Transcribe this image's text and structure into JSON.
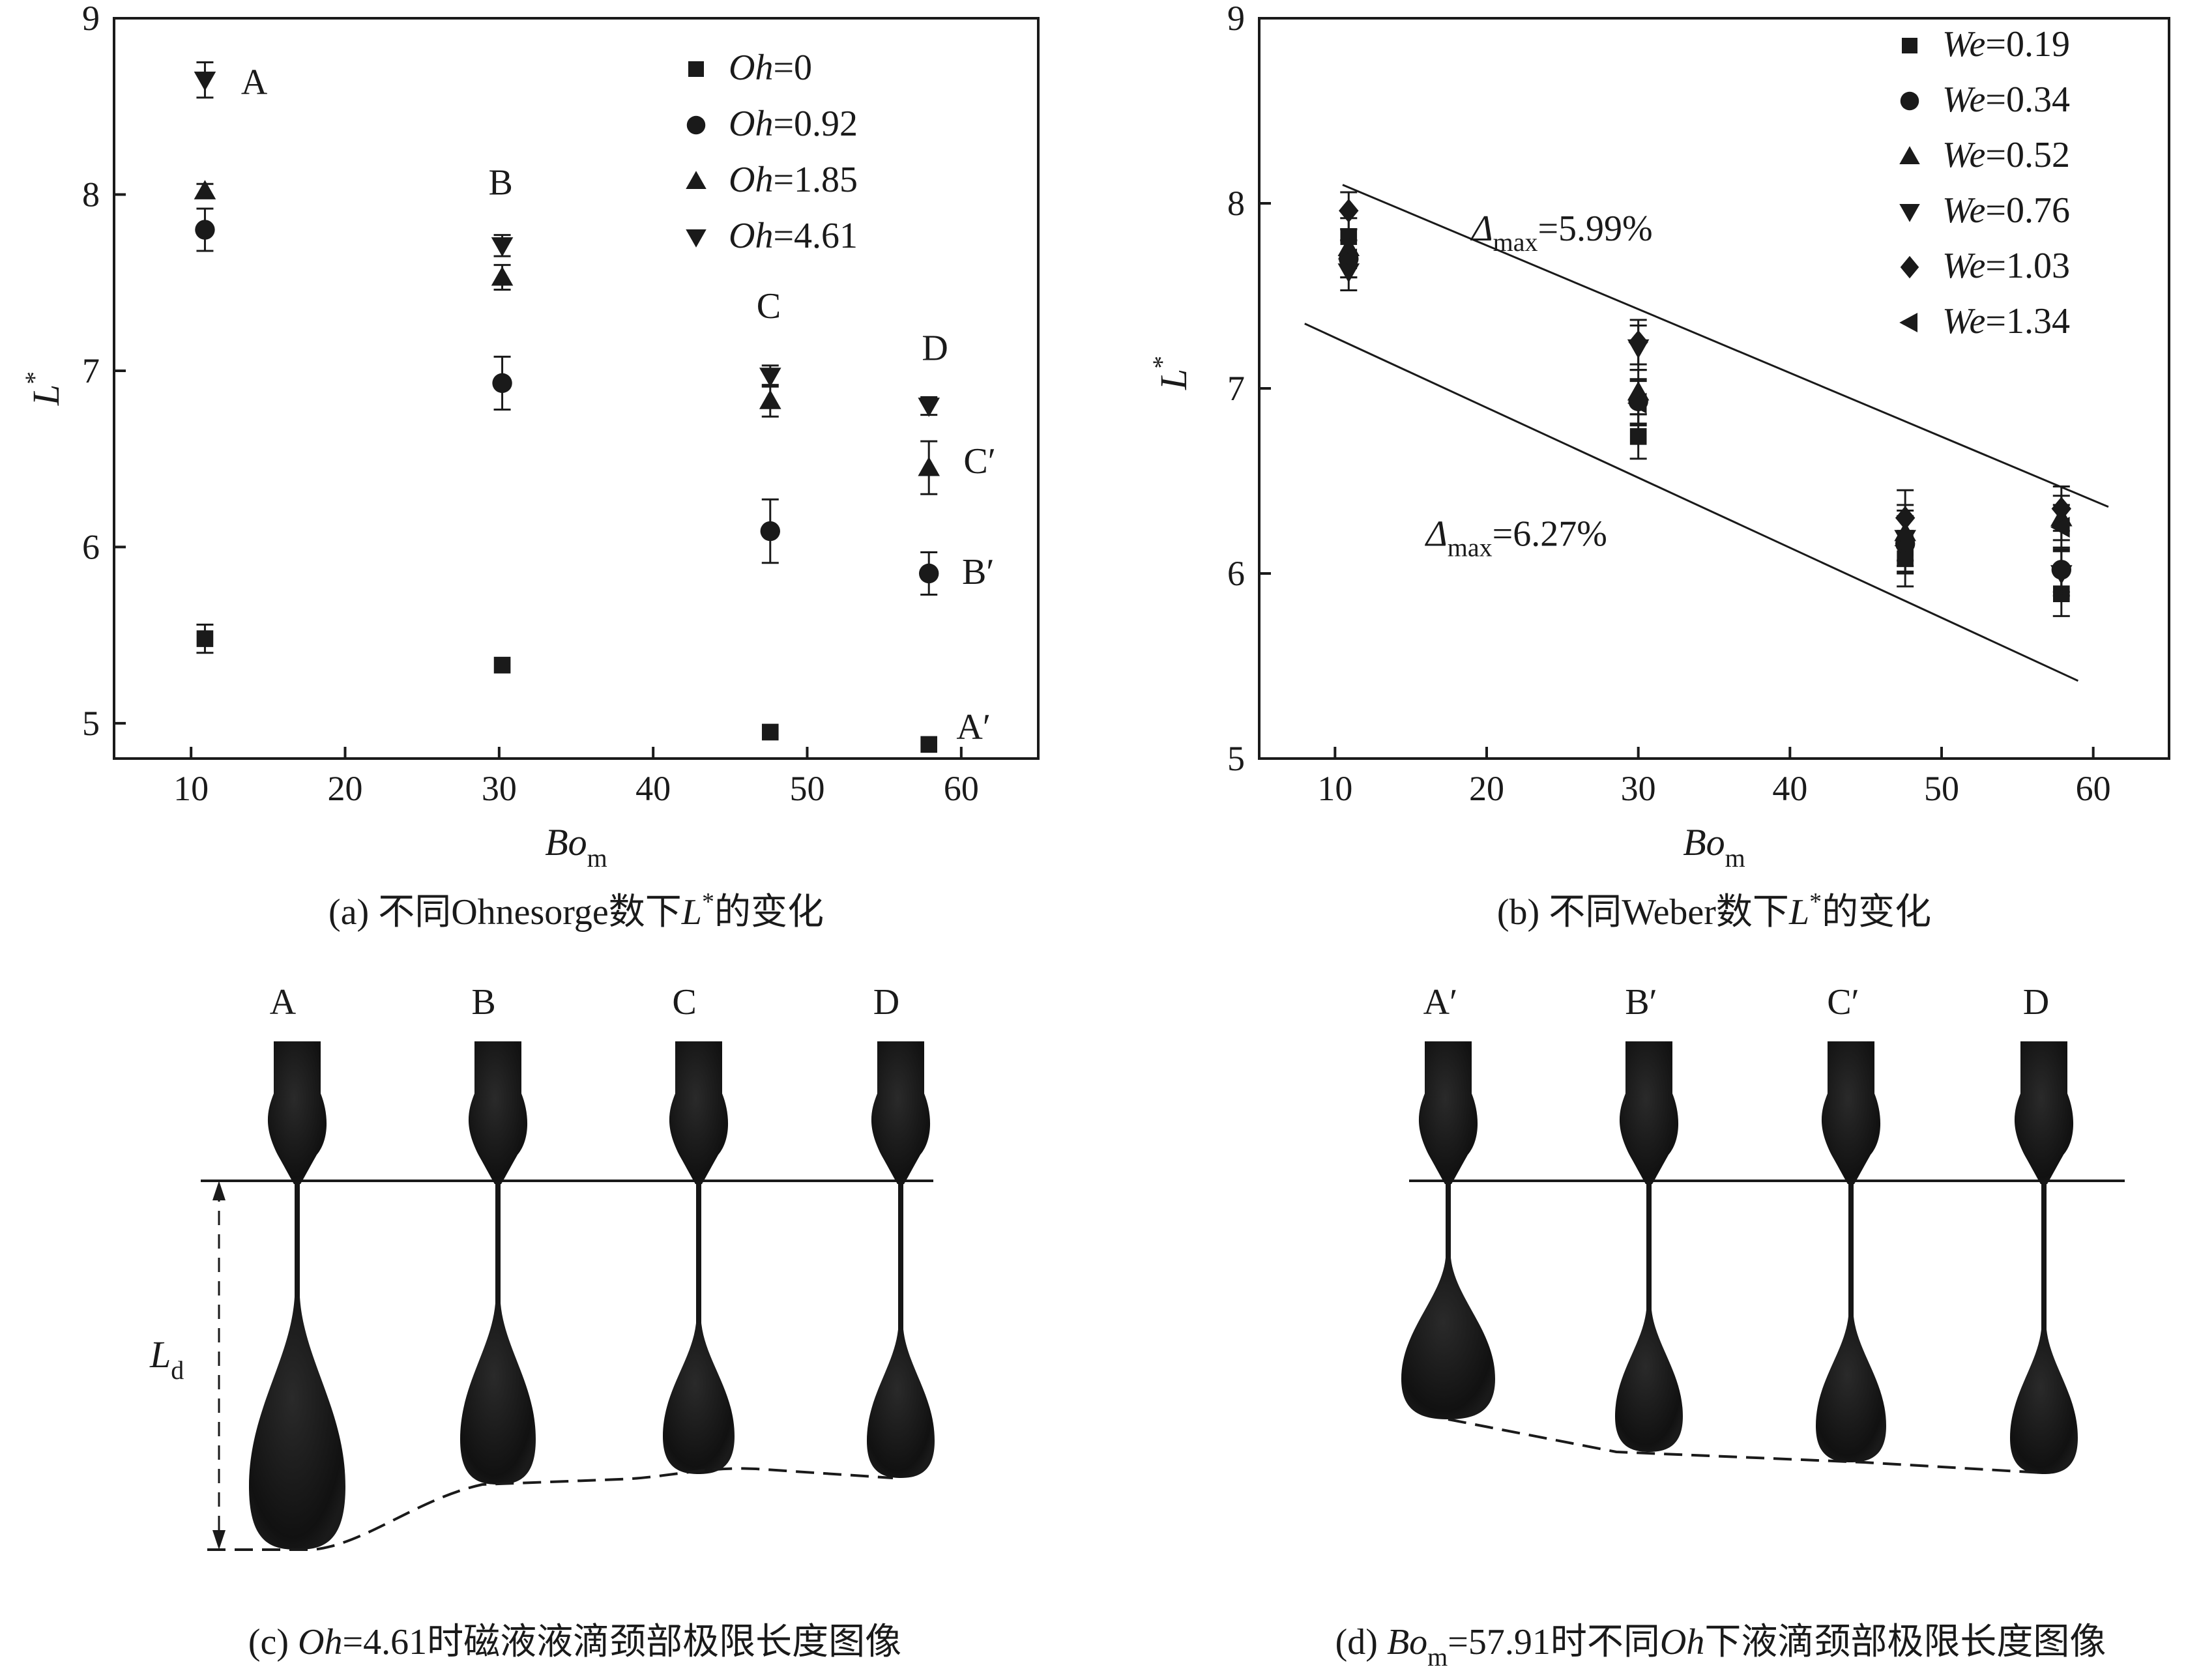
{
  "chart_data": [
    {
      "type": "scatter",
      "panel": "a",
      "caption": {
        "pre": "(a) 不同Ohnesorge数下",
        "var": "L",
        "sup": "*",
        "post": "的变化"
      },
      "xlabel": {
        "main": "Bo",
        "sub": "m"
      },
      "ylabel": {
        "main": "L",
        "sup": "*"
      },
      "xlim": [
        5,
        65
      ],
      "ylim": [
        4.8,
        9
      ],
      "xticks": [
        "10",
        "20",
        "30",
        "40",
        "50",
        "60"
      ],
      "yticks": [
        "5",
        "6",
        "7",
        "8",
        "9"
      ],
      "legend_position": "top-right",
      "series": [
        {
          "name": {
            "var": "Oh",
            "rest": "=0"
          },
          "marker": "square",
          "x": [
            10.9,
            30.2,
            47.6,
            57.9
          ],
          "y": [
            5.48,
            5.33,
            4.95,
            4.88
          ],
          "err": [
            0.08,
            0,
            0,
            0
          ]
        },
        {
          "name": {
            "var": "Oh",
            "rest": "=0.92"
          },
          "marker": "circle",
          "x": [
            10.9,
            30.2,
            47.6,
            57.9
          ],
          "y": [
            7.8,
            6.93,
            6.09,
            5.85
          ],
          "err": [
            0.12,
            0.15,
            0.18,
            0.12
          ]
        },
        {
          "name": {
            "var": "Oh",
            "rest": "=1.85"
          },
          "marker": "triangle-up",
          "x": [
            10.9,
            30.2,
            47.6,
            57.9
          ],
          "y": [
            8.02,
            7.53,
            6.83,
            6.45
          ],
          "err": [
            0.04,
            0.07,
            0.09,
            0.15
          ]
        },
        {
          "name": {
            "var": "Oh",
            "rest": "=4.61"
          },
          "marker": "triangle-down",
          "x": [
            10.9,
            30.2,
            47.6,
            57.9
          ],
          "y": [
            8.65,
            7.71,
            6.97,
            6.8
          ],
          "err": [
            0.1,
            0.06,
            0.06,
            0.05
          ]
        }
      ],
      "annotations": [
        {
          "text": "A",
          "x": 14.1,
          "y": 8.57
        },
        {
          "text": "B",
          "x": 30.1,
          "y": 8.0
        },
        {
          "text": "C",
          "x": 47.5,
          "y": 7.3
        },
        {
          "text": "D",
          "x": 58.3,
          "y": 7.06
        },
        {
          "text": "C′",
          "x": 61.2,
          "y": 6.42
        },
        {
          "text": "B′",
          "x": 61.1,
          "y": 5.79
        },
        {
          "text": "A′",
          "x": 60.8,
          "y": 4.91
        }
      ]
    },
    {
      "type": "scatter",
      "panel": "b",
      "caption": {
        "pre": "(b) 不同Weber数下",
        "var": "L",
        "sup": "*",
        "post": "的变化"
      },
      "xlabel": {
        "main": "Bo",
        "sub": "m"
      },
      "ylabel": {
        "main": "L",
        "sup": "*"
      },
      "xlim": [
        5,
        65
      ],
      "ylim": [
        5,
        9
      ],
      "xticks": [
        "10",
        "20",
        "30",
        "40",
        "50",
        "60"
      ],
      "yticks": [
        "5",
        "6",
        "7",
        "8",
        "9"
      ],
      "legend_position": "top-right",
      "series": [
        {
          "name": {
            "var": "We",
            "rest": "=0.19"
          },
          "marker": "square",
          "x": [
            10.9,
            30.0,
            47.6,
            57.9
          ],
          "y": [
            7.82,
            6.74,
            6.08,
            5.89
          ],
          "err": [
            0.1,
            0.12,
            0.15,
            0.12
          ]
        },
        {
          "name": {
            "var": "We",
            "rest": "=0.34"
          },
          "marker": "circle",
          "x": [
            10.9,
            30.0,
            47.6,
            57.9
          ],
          "y": [
            7.7,
            6.93,
            6.16,
            6.02
          ],
          "err": [
            0.1,
            0.12,
            0.15,
            0.12
          ]
        },
        {
          "name": {
            "var": "We",
            "rest": "=0.52"
          },
          "marker": "triangle-up",
          "x": [
            10.9,
            30.0,
            47.6,
            57.9
          ],
          "y": [
            7.76,
            6.98,
            6.22,
            6.3
          ],
          "err": [
            0.1,
            0.12,
            0.15,
            0.12
          ]
        },
        {
          "name": {
            "var": "We",
            "rest": "=0.76"
          },
          "marker": "triangle-down",
          "x": [
            10.9,
            30.0,
            47.6,
            57.9
          ],
          "y": [
            7.63,
            7.22,
            6.19,
            6.0
          ],
          "err": [
            0.1,
            0.12,
            0.15,
            0.12
          ]
        },
        {
          "name": {
            "var": "We",
            "rest": "=1.03"
          },
          "marker": "diamond",
          "x": [
            10.9,
            30.0,
            47.6,
            57.9
          ],
          "y": [
            7.96,
            7.25,
            6.3,
            6.35
          ],
          "err": [
            0.1,
            0.12,
            0.15,
            0.12
          ]
        },
        {
          "name": {
            "var": "We",
            "rest": "=1.34"
          },
          "marker": "triangle-left",
          "x": [
            10.9,
            30.0,
            47.6,
            57.9
          ],
          "y": [
            7.7,
            6.92,
            6.15,
            6.25
          ],
          "err": [
            0.1,
            0.12,
            0.15,
            0.12
          ]
        }
      ],
      "lines": [
        {
          "x": [
            10.5,
            61.0
          ],
          "y": [
            8.1,
            6.36
          ]
        },
        {
          "x": [
            8.0,
            59.0
          ],
          "y": [
            7.35,
            5.42
          ]
        }
      ],
      "annotations": [
        {
          "main": "Δ",
          "sub": "max",
          "rest": "=5.99%",
          "x": 19.0,
          "y": 7.8
        },
        {
          "main": "Δ",
          "sub": "max",
          "rest": "=6.27%",
          "x": 16.0,
          "y": 6.15
        }
      ]
    }
  ],
  "images": [
    {
      "panel": "c",
      "caption": {
        "pre": "(c) ",
        "var": "Oh",
        "rest": "=4.61时磁液液滴颈部极限长度图像"
      },
      "drop_labels": [
        "A",
        "B",
        "C",
        "D"
      ],
      "length_label": {
        "main": "L",
        "sub": "d"
      }
    },
    {
      "panel": "d",
      "caption": {
        "pre": "(d) ",
        "var": "Bo",
        "sub": "m",
        "mid": "=57.91时不同",
        "var2": "Oh",
        "rest": "下液滴颈部极限长度图像"
      },
      "drop_labels": [
        "A′",
        "B′",
        "C′",
        "D"
      ]
    }
  ]
}
